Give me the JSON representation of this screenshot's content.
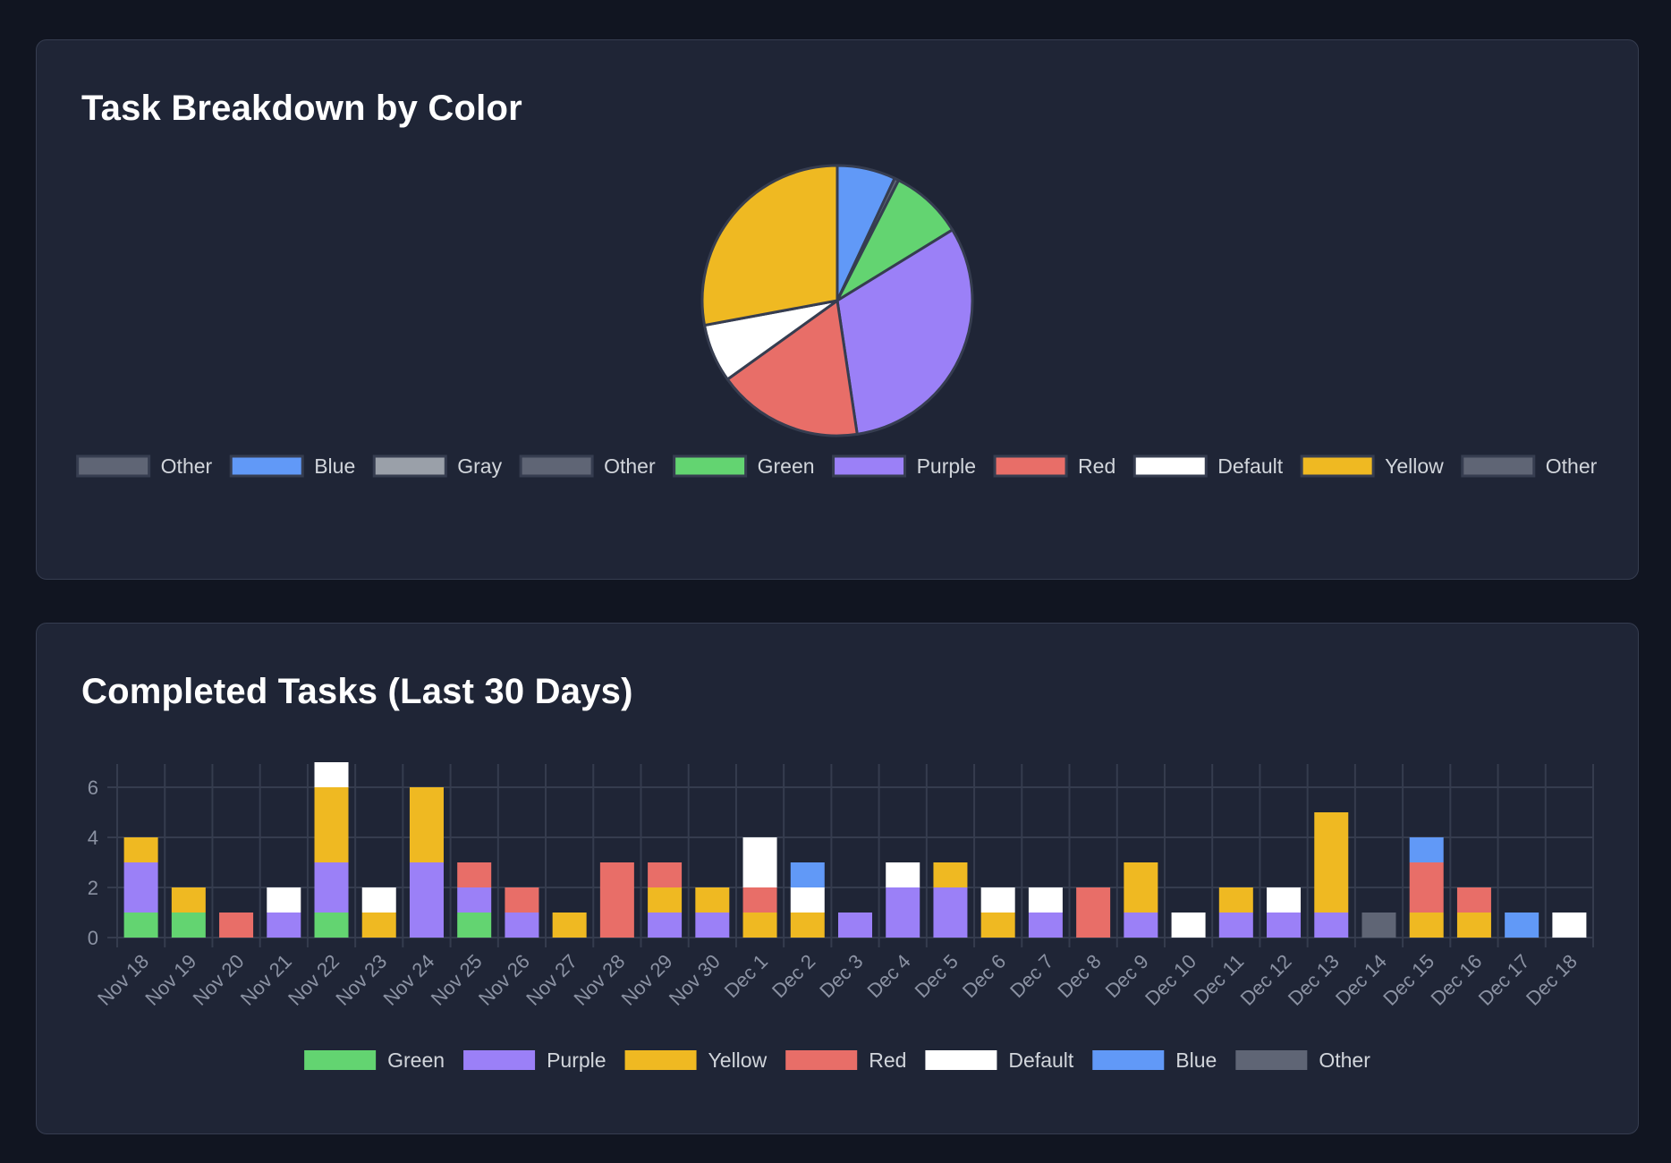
{
  "pie_card": {
    "title": "Task Breakdown by Color"
  },
  "bar_card": {
    "title": "Completed Tasks (Last 30 Days)"
  },
  "chart_data": [
    {
      "type": "pie",
      "title": "Task Breakdown by Color",
      "slice_border_color": "#363d50",
      "slices": [
        {
          "label": "Other",
          "value": 0,
          "color": "#5f6575"
        },
        {
          "label": "Blue",
          "value": 4,
          "color": "#6199f7"
        },
        {
          "label": "Gray",
          "value": 0,
          "color": "#9aa0a9"
        },
        {
          "label": "Other",
          "value": 0.3,
          "color": "#5f6575"
        },
        {
          "label": "Green",
          "value": 5,
          "color": "#63d471"
        },
        {
          "label": "Purple",
          "value": 18,
          "color": "#9b80f7"
        },
        {
          "label": "Red",
          "value": 10,
          "color": "#e86e68"
        },
        {
          "label": "Default",
          "value": 4,
          "color": "#ffffff"
        },
        {
          "label": "Yellow",
          "value": 16,
          "color": "#efb922"
        },
        {
          "label": "Other",
          "value": 0,
          "color": "#5f6575"
        }
      ],
      "legend_position": "bottom"
    },
    {
      "type": "bar",
      "stacked": true,
      "title": "Completed Tasks (Last 30 Days)",
      "categories": [
        "Nov 18",
        "Nov 19",
        "Nov 20",
        "Nov 21",
        "Nov 22",
        "Nov 23",
        "Nov 24",
        "Nov 25",
        "Nov 26",
        "Nov 27",
        "Nov 28",
        "Nov 29",
        "Nov 30",
        "Dec 1",
        "Dec 2",
        "Dec 3",
        "Dec 4",
        "Dec 5",
        "Dec 6",
        "Dec 7",
        "Dec 8",
        "Dec 9",
        "Dec 10",
        "Dec 11",
        "Dec 12",
        "Dec 13",
        "Dec 14",
        "Dec 15",
        "Dec 16",
        "Dec 17",
        "Dec 18"
      ],
      "series": [
        {
          "name": "Green",
          "color": "#63d471",
          "values": [
            1,
            1,
            0,
            0,
            1,
            0,
            0,
            1,
            0,
            0,
            0,
            0,
            0,
            0,
            0,
            0,
            0,
            0,
            0,
            0,
            0,
            0,
            0,
            0,
            0,
            0,
            0,
            0,
            0,
            0,
            0
          ]
        },
        {
          "name": "Purple",
          "color": "#9b80f7",
          "values": [
            2,
            0,
            0,
            1,
            2,
            0,
            3,
            1,
            1,
            0,
            0,
            1,
            1,
            0,
            0,
            1,
            2,
            2,
            0,
            1,
            0,
            1,
            0,
            1,
            1,
            1,
            0,
            0,
            0,
            0,
            0
          ]
        },
        {
          "name": "Yellow",
          "color": "#efb922",
          "values": [
            1,
            1,
            0,
            0,
            3,
            1,
            3,
            0,
            0,
            1,
            0,
            1,
            1,
            1,
            1,
            0,
            0,
            1,
            1,
            0,
            0,
            2,
            0,
            1,
            0,
            4,
            0,
            1,
            1,
            0,
            0
          ]
        },
        {
          "name": "Red",
          "color": "#e86e68",
          "values": [
            0,
            0,
            1,
            0,
            0,
            0,
            0,
            1,
            1,
            0,
            3,
            1,
            0,
            1,
            0,
            0,
            0,
            0,
            0,
            0,
            2,
            0,
            0,
            0,
            0,
            0,
            0,
            2,
            1,
            0,
            0
          ]
        },
        {
          "name": "Default",
          "color": "#ffffff",
          "values": [
            0,
            0,
            0,
            1,
            1,
            1,
            0,
            0,
            0,
            0,
            0,
            0,
            0,
            2,
            1,
            0,
            1,
            0,
            1,
            1,
            0,
            0,
            1,
            0,
            1,
            0,
            0,
            0,
            0,
            0,
            1
          ]
        },
        {
          "name": "Blue",
          "color": "#6199f7",
          "values": [
            0,
            0,
            0,
            0,
            0,
            0,
            0,
            0,
            0,
            0,
            0,
            0,
            0,
            0,
            1,
            0,
            0,
            0,
            0,
            0,
            0,
            0,
            0,
            0,
            0,
            0,
            0,
            1,
            0,
            1,
            0
          ]
        },
        {
          "name": "Other",
          "color": "#5f6575",
          "values": [
            0,
            0,
            0,
            0,
            0,
            0,
            0,
            0,
            0,
            0,
            0,
            0,
            0,
            0,
            0,
            0,
            0,
            0,
            0,
            0,
            0,
            0,
            0,
            0,
            0,
            0,
            1,
            0,
            0,
            0,
            0
          ]
        }
      ],
      "yticks": [
        0,
        2,
        4,
        6
      ],
      "ylim": [
        0,
        7
      ],
      "grid": true,
      "legend_position": "bottom"
    }
  ]
}
